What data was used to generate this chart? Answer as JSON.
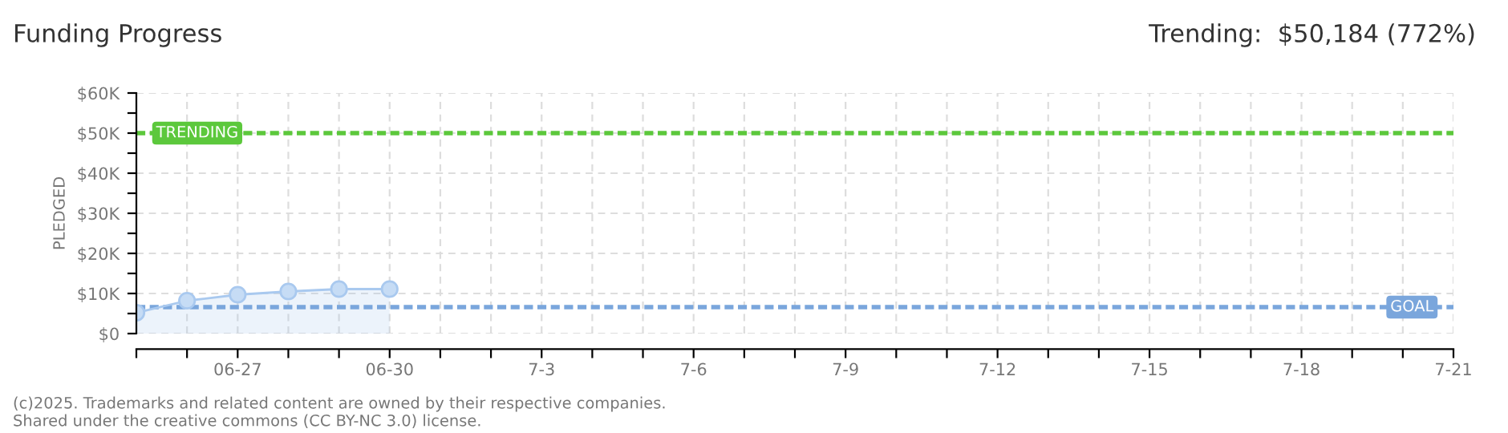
{
  "chart_data": {
    "type": "area",
    "title": "Funding Progress",
    "ylabel": "PLEDGED",
    "annotations": [
      "Trending:  $50,184 (772%)",
      "(c)2025. Trademarks and related content are owned by their respective companies.",
      "Shared under the creative commons (CC BY-NC 3.0) license."
    ],
    "x": [
      "2025-06-25",
      "2025-06-26",
      "2025-06-27",
      "2025-06-28",
      "2025-06-29",
      "2025-06-30"
    ],
    "series": [
      {
        "color": "#a9c9ef",
        "values": [
          5200,
          8200,
          9700,
          10500,
          11100,
          11100
        ]
      }
    ],
    "marker": "circle",
    "grid": true,
    "xlim": [
      "2025-06-25",
      "2025-07-21"
    ],
    "xticks": [
      {
        "value": "2025-06-25",
        "label": null
      },
      {
        "value": "2025-06-26",
        "label": null
      },
      {
        "value": "2025-06-27",
        "label": "06-27"
      },
      {
        "value": "2025-06-28",
        "label": null
      },
      {
        "value": "2025-06-29",
        "label": null
      },
      {
        "value": "2025-06-30",
        "label": "06-30"
      },
      {
        "value": "2025-07-01",
        "label": null
      },
      {
        "value": "2025-07-02",
        "label": null
      },
      {
        "value": "2025-07-03",
        "label": "7-3"
      },
      {
        "value": "2025-07-04",
        "label": null
      },
      {
        "value": "2025-07-05",
        "label": null
      },
      {
        "value": "2025-07-06",
        "label": "7-6"
      },
      {
        "value": "2025-07-07",
        "label": null
      },
      {
        "value": "2025-07-08",
        "label": null
      },
      {
        "value": "2025-07-09",
        "label": "7-9"
      },
      {
        "value": "2025-07-10",
        "label": null
      },
      {
        "value": "2025-07-11",
        "label": null
      },
      {
        "value": "2025-07-12",
        "label": "7-12"
      },
      {
        "value": "2025-07-13",
        "label": null
      },
      {
        "value": "2025-07-14",
        "label": null
      },
      {
        "value": "2025-07-15",
        "label": "7-15"
      },
      {
        "value": "2025-07-16",
        "label": null
      },
      {
        "value": "2025-07-17",
        "label": null
      },
      {
        "value": "2025-07-18",
        "label": "7-18"
      },
      {
        "value": "2025-07-19",
        "label": null
      },
      {
        "value": "2025-07-20",
        "label": null
      },
      {
        "value": "2025-07-21",
        "label": "7-21"
      }
    ],
    "ylim": [
      0,
      60000
    ],
    "yticks": [
      {
        "value": 0,
        "label": "$0"
      },
      {
        "value": 5000,
        "label": null
      },
      {
        "value": 10000,
        "label": "$10K"
      },
      {
        "value": 15000,
        "label": null
      },
      {
        "value": 20000,
        "label": "$20K"
      },
      {
        "value": 25000,
        "label": null
      },
      {
        "value": 30000,
        "label": "$30K"
      },
      {
        "value": 35000,
        "label": null
      },
      {
        "value": 40000,
        "label": "$40K"
      },
      {
        "value": 45000,
        "label": null
      },
      {
        "value": 50000,
        "label": "$50K"
      },
      {
        "value": 55000,
        "label": null
      },
      {
        "value": 60000,
        "label": "$60K"
      }
    ],
    "ref_lines": [
      {
        "axis": "y",
        "value": 50000,
        "label": "TRENDING",
        "color": "#5cc83c",
        "line_style": "dotted"
      },
      {
        "axis": "y",
        "value": 6600,
        "label": "GOAL",
        "color": "#7aa6dc",
        "line_style": "dotted"
      }
    ]
  }
}
